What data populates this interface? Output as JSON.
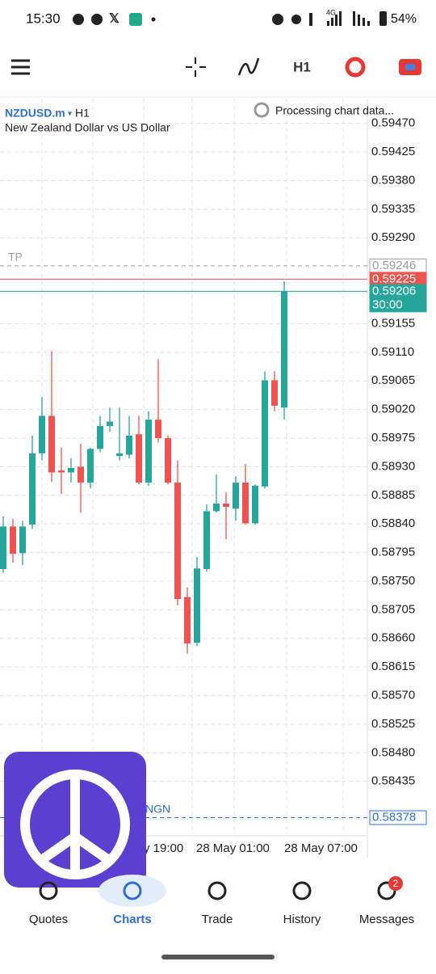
{
  "status_bar": {
    "time": "15:30",
    "network": "4G",
    "battery": "54%"
  },
  "toolbar": {
    "timeframe": "H1"
  },
  "chart_data": {
    "type": "candlestick",
    "symbol": "NZDUSD.m",
    "timeframe": "H1",
    "subtitle": "New Zealand Dollar vs US Dollar",
    "status": "Processing chart data...",
    "up_color": "#26a69a",
    "down_color": "#ef5350",
    "grid": true,
    "ylim": [
      0.58352,
      0.59509
    ],
    "yticks": [
      {
        "value": 0.5947,
        "label": "0.59470"
      },
      0.59425,
      {
        "value": 0.5938,
        "label": "0.59380"
      },
      0.59335,
      {
        "value": 0.5929,
        "label": "0.59290"
      },
      0.59155,
      {
        "value": 0.5911,
        "label": "0.59110"
      },
      0.59065,
      {
        "value": 0.5902,
        "label": "0.59020"
      },
      0.58975,
      {
        "value": 0.5893,
        "label": "0.58930"
      },
      0.58885,
      {
        "value": 0.5884,
        "label": "0.58840"
      },
      0.58795,
      {
        "value": 0.5875,
        "label": "0.58750"
      },
      0.58705,
      {
        "value": 0.5866,
        "label": "0.58660"
      },
      0.58615,
      {
        "value": 0.5857,
        "label": "0.58570"
      },
      0.58525,
      {
        "value": 0.5848,
        "label": "0.58480"
      },
      0.58435
    ],
    "x_labels": [
      "y 19:00",
      "28 May 01:00",
      "28 May 07:00"
    ],
    "open": [
      0.58769,
      0.58836,
      0.58794,
      0.58839,
      0.58951,
      0.5901,
      0.58924,
      0.58921,
      0.5893,
      0.58905,
      0.58958,
      0.58994,
      0.58947,
      0.58949,
      0.58981,
      0.58905,
      0.59004,
      0.58975,
      0.58905,
      0.58725,
      0.58653,
      0.58769,
      0.5886,
      0.58872,
      0.58864,
      0.58905,
      0.58841,
      0.58899,
      0.59066,
      0.59023
    ],
    "high": [
      0.58852,
      0.58848,
      0.58845,
      0.58979,
      0.5904,
      0.59112,
      0.5896,
      0.58943,
      0.58966,
      0.5896,
      0.5901,
      0.59023,
      0.59023,
      0.5901,
      0.5901,
      0.59017,
      0.59099,
      0.58979,
      0.5894,
      0.5874,
      0.58788,
      0.58871,
      0.58918,
      0.5889,
      0.58915,
      0.58934,
      0.58902,
      0.5908,
      0.5908,
      0.59222
    ],
    "low": [
      0.58763,
      0.58779,
      0.58775,
      0.58832,
      0.5894,
      0.58906,
      0.58887,
      0.58905,
      0.58858,
      0.58896,
      0.58953,
      0.58985,
      0.5894,
      0.58943,
      0.58902,
      0.589,
      0.58968,
      0.58902,
      0.58712,
      0.58636,
      0.58648,
      0.58765,
      0.58858,
      0.58816,
      0.58845,
      0.58839,
      0.58839,
      0.58896,
      0.59017,
      0.59004
    ],
    "close": [
      0.58836,
      0.58793,
      0.58836,
      0.58951,
      0.5901,
      0.58921,
      0.58921,
      0.58928,
      0.58905,
      0.58958,
      0.58994,
      0.59001,
      0.58951,
      0.58979,
      0.58905,
      0.59004,
      0.58975,
      0.58905,
      0.58722,
      0.58652,
      0.5877,
      0.5886,
      0.58872,
      0.58867,
      0.58905,
      0.58841,
      0.589,
      0.59066,
      0.59026,
      0.59206
    ],
    "levels": [
      {
        "label": "TP",
        "value": 0.59246,
        "color": "#9e9e9e",
        "dashed": true
      },
      {
        "value": 0.59225,
        "color": "#ef5350",
        "dashed": false
      },
      {
        "value": 0.59206,
        "color": "#26a69a",
        "dashed": false,
        "countdown": "30:00"
      },
      {
        "label": "NGN",
        "value": 0.58378,
        "color": "#2f6fd6",
        "dashed": true
      }
    ]
  },
  "nav": {
    "items": [
      "Quotes",
      "Charts",
      "Trade",
      "History",
      "Messages"
    ],
    "active": 1,
    "badge": 2
  }
}
